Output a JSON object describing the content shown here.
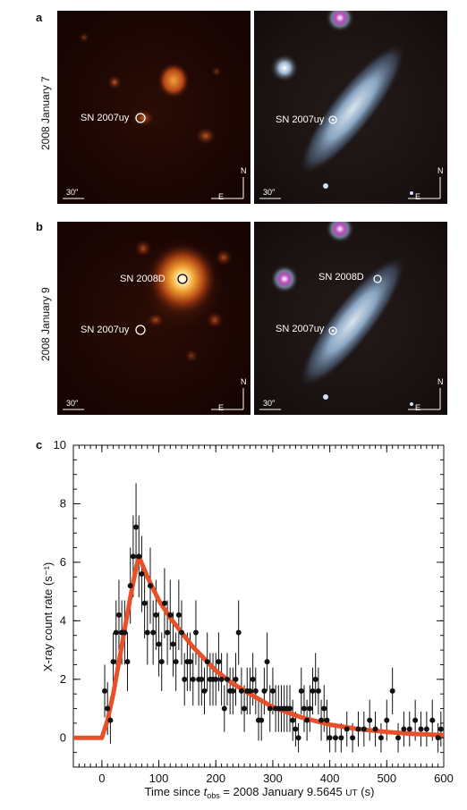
{
  "panels": {
    "a": {
      "letter": "a",
      "date": "2008 January 7",
      "xray_labels": [
        "SN 2007uy"
      ],
      "optical_labels": [
        "SN 2007uy"
      ]
    },
    "b": {
      "letter": "b",
      "date": "2008 January 9",
      "xray_labels": [
        "SN 2008D",
        "SN 2007uy"
      ],
      "optical_labels": [
        "SN 2008D",
        "SN 2007uy"
      ]
    },
    "c": {
      "letter": "c"
    }
  },
  "scale_bar": "30″",
  "compass": {
    "north": "N",
    "east": "E"
  },
  "chart_data": {
    "type": "scatter",
    "xlabel_prefix": "Time since ",
    "xlabel_t": "t",
    "xlabel_sub": "obs",
    "xlabel_suffix": " = 2008 January 9.5645 ",
    "xlabel_ut": "UT",
    "xlabel_unit": " (s)",
    "ylabel": "X-ray count rate (s⁻¹)",
    "xlim": [
      -50,
      600
    ],
    "ylim": [
      -1,
      10
    ],
    "xticks": [
      0,
      100,
      200,
      300,
      400,
      500,
      600
    ],
    "yticks": [
      0,
      2,
      4,
      6,
      8,
      10
    ],
    "colors": {
      "model": "#e8502a",
      "points": "#111111"
    },
    "series": [
      {
        "type": "points",
        "x": [
          5,
          10,
          15,
          20,
          25,
          30,
          35,
          40,
          45,
          50,
          55,
          60,
          65,
          70,
          75,
          80,
          85,
          90,
          95,
          100,
          105,
          110,
          115,
          120,
          125,
          130,
          135,
          140,
          145,
          150,
          155,
          160,
          165,
          170,
          175,
          180,
          185,
          190,
          195,
          200,
          205,
          210,
          215,
          220,
          225,
          230,
          235,
          240,
          245,
          250,
          255,
          260,
          265,
          270,
          275,
          280,
          285,
          290,
          295,
          300,
          305,
          310,
          315,
          320,
          325,
          330,
          335,
          340,
          345,
          350,
          355,
          360,
          365,
          370,
          375,
          380,
          385,
          390,
          395,
          400,
          410,
          420,
          430,
          440,
          450,
          460,
          470,
          480,
          490,
          500,
          510,
          520,
          530,
          540,
          550,
          560,
          570,
          580,
          590,
          595
        ],
        "y": [
          1.6,
          1.0,
          0.6,
          2.6,
          3.6,
          4.2,
          3.6,
          3.6,
          2.6,
          5.2,
          6.2,
          7.2,
          6.2,
          5.6,
          4.6,
          3.6,
          5.2,
          3.6,
          4.2,
          3.2,
          2.6,
          4.6,
          3.6,
          4.2,
          3.2,
          2.6,
          4.2,
          3.6,
          2.0,
          2.6,
          2.6,
          2.0,
          3.6,
          2.0,
          2.0,
          1.6,
          2.6,
          2.0,
          2.0,
          2.0,
          2.6,
          2.0,
          1.0,
          2.0,
          1.6,
          1.6,
          2.0,
          3.6,
          1.6,
          1.0,
          1.6,
          1.6,
          2.0,
          1.6,
          0.6,
          0.6,
          1.6,
          2.6,
          1.0,
          1.6,
          1.0,
          1.0,
          1.0,
          1.0,
          1.0,
          1.0,
          0.6,
          0.3,
          0.0,
          1.6,
          1.0,
          0.6,
          1.0,
          1.6,
          2.0,
          1.6,
          0.6,
          1.0,
          0.6,
          0.0,
          0.0,
          0.0,
          0.3,
          0.0,
          0.3,
          0.3,
          0.6,
          0.3,
          0.0,
          0.6,
          1.6,
          0.0,
          0.3,
          0.3,
          0.6,
          0.3,
          0.3,
          0.6,
          0.0,
          0.3
        ],
        "yerr": [
          0.9,
          0.9,
          0.8,
          1.0,
          1.1,
          1.2,
          1.1,
          1.1,
          1.0,
          1.3,
          1.4,
          1.5,
          1.4,
          1.3,
          1.2,
          1.1,
          1.3,
          1.1,
          1.2,
          1.1,
          1.0,
          1.2,
          1.1,
          1.2,
          1.1,
          1.0,
          1.2,
          1.1,
          0.9,
          1.0,
          1.0,
          0.9,
          1.1,
          0.9,
          0.9,
          0.8,
          1.0,
          0.9,
          0.9,
          0.9,
          1.0,
          0.9,
          0.8,
          0.9,
          0.8,
          0.8,
          0.9,
          1.1,
          0.8,
          0.8,
          0.8,
          0.8,
          0.9,
          0.8,
          0.7,
          0.7,
          0.8,
          1.0,
          0.8,
          0.8,
          0.8,
          0.8,
          0.8,
          0.8,
          0.8,
          0.8,
          0.7,
          0.6,
          0.5,
          0.8,
          0.8,
          0.7,
          0.8,
          0.8,
          0.9,
          0.8,
          0.7,
          0.8,
          0.7,
          0.5,
          0.5,
          0.5,
          0.6,
          0.5,
          0.6,
          0.6,
          0.7,
          0.6,
          0.5,
          0.7,
          0.8,
          0.5,
          0.6,
          0.6,
          0.7,
          0.6,
          0.6,
          0.7,
          0.5,
          0.6
        ]
      },
      {
        "type": "model",
        "x": [
          -50,
          0,
          10,
          20,
          30,
          40,
          50,
          60,
          65,
          80,
          100,
          120,
          140,
          160,
          180,
          200,
          230,
          260,
          300,
          350,
          400,
          450,
          500,
          550,
          600
        ],
        "y": [
          0,
          0,
          0.6,
          1.5,
          2.6,
          3.7,
          4.8,
          5.8,
          6.2,
          5.5,
          4.7,
          4.1,
          3.6,
          3.1,
          2.7,
          2.3,
          1.85,
          1.5,
          1.05,
          0.7,
          0.45,
          0.3,
          0.2,
          0.13,
          0.09
        ]
      }
    ]
  }
}
